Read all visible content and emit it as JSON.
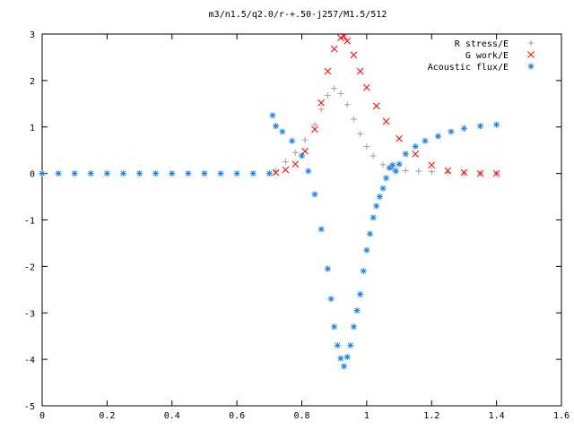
{
  "chart_data": {
    "type": "scatter",
    "title": "m3/n1.5/q2.0/r-+.50-j257/M1.5/512",
    "xlabel": "",
    "ylabel": "",
    "xlim": [
      0,
      1.6
    ],
    "ylim": [
      -5,
      3
    ],
    "xticks": [
      "0",
      "0.2",
      "0.4",
      "0.6",
      "0.8",
      "1",
      "1.2",
      "1.4",
      "1.6"
    ],
    "yticks": [
      "3",
      "2",
      "1",
      "0",
      "-1",
      "-2",
      "-3",
      "-4",
      "-5"
    ],
    "grid": false,
    "legend_position": "top-right",
    "series": [
      {
        "name": "R stress/E",
        "marker": "+",
        "color": "#a0a0a0",
        "x": [
          0.72,
          0.75,
          0.78,
          0.81,
          0.84,
          0.86,
          0.88,
          0.9,
          0.92,
          0.94,
          0.96,
          0.98,
          1.0,
          1.02,
          1.05,
          1.08,
          1.12,
          1.16,
          1.2,
          1.25,
          1.3,
          1.35,
          1.4
        ],
        "y": [
          0.05,
          0.25,
          0.45,
          0.72,
          1.05,
          1.38,
          1.68,
          1.83,
          1.72,
          1.48,
          1.17,
          0.85,
          0.58,
          0.38,
          0.19,
          0.1,
          0.06,
          0.05,
          0.04,
          0.02,
          0.01,
          0.005,
          0.0
        ]
      },
      {
        "name": "G work/E",
        "marker": "x",
        "color": "#ff0000",
        "x": [
          0.72,
          0.75,
          0.78,
          0.81,
          0.84,
          0.86,
          0.88,
          0.9,
          0.92,
          0.93,
          0.94,
          0.96,
          0.98,
          1.0,
          1.03,
          1.06,
          1.1,
          1.15,
          1.2,
          1.25,
          1.3,
          1.35,
          1.4
        ],
        "y": [
          0.02,
          0.08,
          0.2,
          0.48,
          0.95,
          1.52,
          2.2,
          2.68,
          2.92,
          2.95,
          2.85,
          2.55,
          2.2,
          1.85,
          1.45,
          1.12,
          0.75,
          0.42,
          0.18,
          0.06,
          0.02,
          0.0,
          0.0
        ]
      },
      {
        "name": "Acoustic flux/E",
        "marker": "*",
        "color": "#1a7fe6",
        "x": [
          0.0,
          0.05,
          0.1,
          0.15,
          0.2,
          0.25,
          0.3,
          0.35,
          0.4,
          0.45,
          0.5,
          0.55,
          0.6,
          0.65,
          0.7,
          0.71,
          0.72,
          0.74,
          0.77,
          0.8,
          0.82,
          0.84,
          0.86,
          0.88,
          0.89,
          0.9,
          0.91,
          0.92,
          0.93,
          0.94,
          0.95,
          0.96,
          0.97,
          0.98,
          0.99,
          1.0,
          1.01,
          1.02,
          1.03,
          1.04,
          1.05,
          1.06,
          1.07,
          1.08,
          1.09,
          1.1,
          1.12,
          1.15,
          1.18,
          1.22,
          1.26,
          1.3,
          1.35,
          1.4
        ],
        "y": [
          0,
          0,
          0,
          0,
          0,
          0,
          0,
          0,
          0,
          0,
          0,
          0,
          0,
          0,
          0,
          1.25,
          1.02,
          0.9,
          0.7,
          0.38,
          0.05,
          -0.45,
          -1.2,
          -2.05,
          -2.7,
          -3.3,
          -3.7,
          -3.98,
          -4.15,
          -3.95,
          -3.7,
          -3.3,
          -2.95,
          -2.6,
          -2.1,
          -1.65,
          -1.3,
          -0.95,
          -0.7,
          -0.5,
          -0.32,
          -0.1,
          0.12,
          0.18,
          0.05,
          0.2,
          0.42,
          0.58,
          0.7,
          0.8,
          0.9,
          0.97,
          1.02,
          1.05
        ]
      }
    ]
  }
}
